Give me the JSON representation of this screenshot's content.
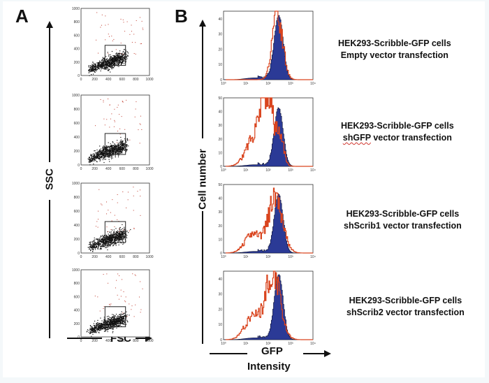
{
  "panels": {
    "a_label": "A",
    "b_label": "B"
  },
  "panel_a": {
    "y_axis_label": "SSC",
    "x_axis_label": "FSC",
    "x_ticks": [
      "0",
      "200",
      "400",
      "600",
      "800",
      "1000"
    ],
    "y_ticks": [
      "0",
      "200",
      "400",
      "600",
      "800",
      "1000"
    ]
  },
  "panel_b": {
    "y_axis_label": "Cell number",
    "x_axis_label_line1": "GFP",
    "x_axis_label_line2": "Intensity",
    "x_ticks": [
      "10⁰",
      "10¹",
      "10²",
      "10³",
      "10⁴"
    ]
  },
  "captions": [
    {
      "line1": "HEK293-Scribble-GFP cells",
      "line2": "Empty vector transfection",
      "underline_word": ""
    },
    {
      "line1": "HEK293-Scribble-GFP cells",
      "line2": "shGFP vector transfection",
      "underline_word": "shGFP"
    },
    {
      "line1": "HEK293-Scribble-GFP cells",
      "line2": "shScrib1 vector transfection",
      "underline_word": ""
    },
    {
      "line1": "HEK293-Scribble-GFP cells",
      "line2": "shScrib2 vector transfection",
      "underline_word": ""
    }
  ],
  "colors": {
    "control_fill": "#2b3a96",
    "knockdown_line": "#d9441e",
    "gate": "#222222",
    "dots": "#111111",
    "sparse_dots": "#c0392b"
  },
  "chart_data": [
    {
      "type": "scatter",
      "panel": "A",
      "xlabel": "FSC",
      "ylabel": "SSC",
      "xlim": [
        0,
        1000
      ],
      "ylim": [
        0,
        1000
      ],
      "plots": [
        {
          "caption_index": 0,
          "gate": {
            "x": [
              350,
              650
            ],
            "y": [
              150,
              450
            ]
          },
          "main_cluster_center": [
            420,
            250
          ]
        },
        {
          "caption_index": 1,
          "gate": {
            "x": [
              350,
              650
            ],
            "y": [
              150,
              450
            ]
          },
          "main_cluster_center": [
            420,
            250
          ]
        },
        {
          "caption_index": 2,
          "gate": {
            "x": [
              350,
              650
            ],
            "y": [
              150,
              450
            ]
          },
          "main_cluster_center": [
            420,
            250
          ]
        },
        {
          "caption_index": 3,
          "gate": {
            "x": [
              350,
              650
            ],
            "y": [
              150,
              450
            ]
          },
          "main_cluster_center": [
            420,
            250
          ]
        }
      ]
    },
    {
      "type": "area",
      "panel": "B",
      "xlabel": "GFP Intensity",
      "ylabel": "Cell number",
      "x_scale": "log",
      "xlim": [
        1,
        10000
      ],
      "plots": [
        {
          "caption_index": 0,
          "y_ticks": [
            "0",
            "10",
            "20",
            "30",
            "40"
          ],
          "ymax": 45,
          "filled_peak_log10": 2.45,
          "line_peak_log10": 2.4,
          "line_peak_value": 44
        },
        {
          "caption_index": 1,
          "y_ticks": [
            "0",
            "10",
            "20",
            "30",
            "40",
            "50"
          ],
          "ymax": 50,
          "filled_peak_log10": 2.45,
          "line_peak_log10": 1.95,
          "line_peak_value": 48
        },
        {
          "caption_index": 2,
          "y_ticks": [
            "0",
            "10",
            "20",
            "30",
            "40",
            "50"
          ],
          "ymax": 50,
          "filled_peak_log10": 2.45,
          "line_peak_log10": 2.3,
          "line_peak_value": 40
        },
        {
          "caption_index": 3,
          "y_ticks": [
            "0",
            "10",
            "20",
            "30",
            "40"
          ],
          "ymax": 45,
          "filled_peak_log10": 2.45,
          "line_peak_log10": 2.2,
          "line_peak_value": 44
        }
      ]
    }
  ]
}
